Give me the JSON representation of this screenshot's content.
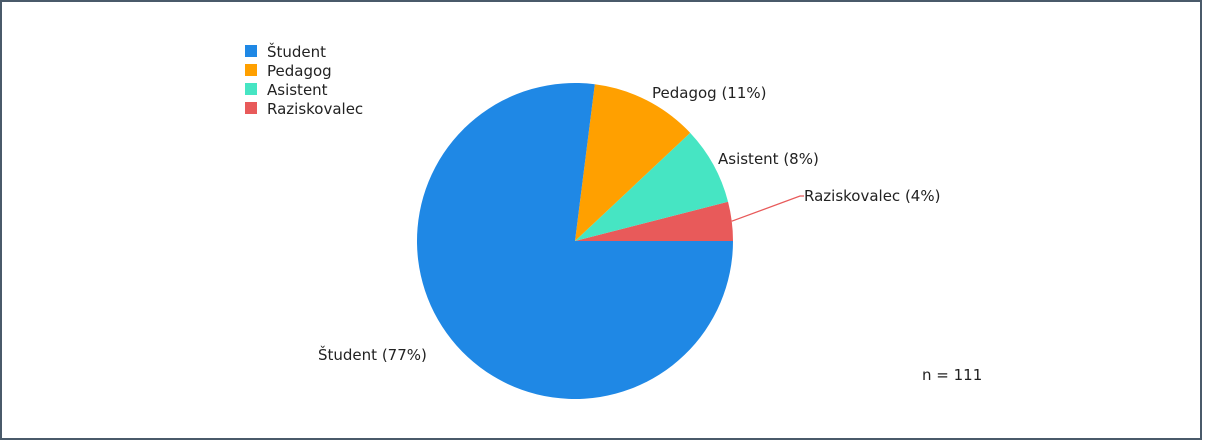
{
  "chart_data": {
    "type": "pie",
    "slices": [
      {
        "name": "Študent",
        "value": 77,
        "label": "Študent (77%)",
        "color": "#1f88e5"
      },
      {
        "name": "Pedagog",
        "value": 11,
        "label": "Pedagog (11%)",
        "color": "#ffa000"
      },
      {
        "name": "Asistent",
        "value": 8,
        "label": "Asistent (8%)",
        "color": "#46e5c3"
      },
      {
        "name": "Raziskovalec",
        "value": 4,
        "label": "Raziskovalec (4%)",
        "color": "#e85a5a"
      }
    ],
    "legend_position": "top-left",
    "annotation": "n = 111"
  }
}
